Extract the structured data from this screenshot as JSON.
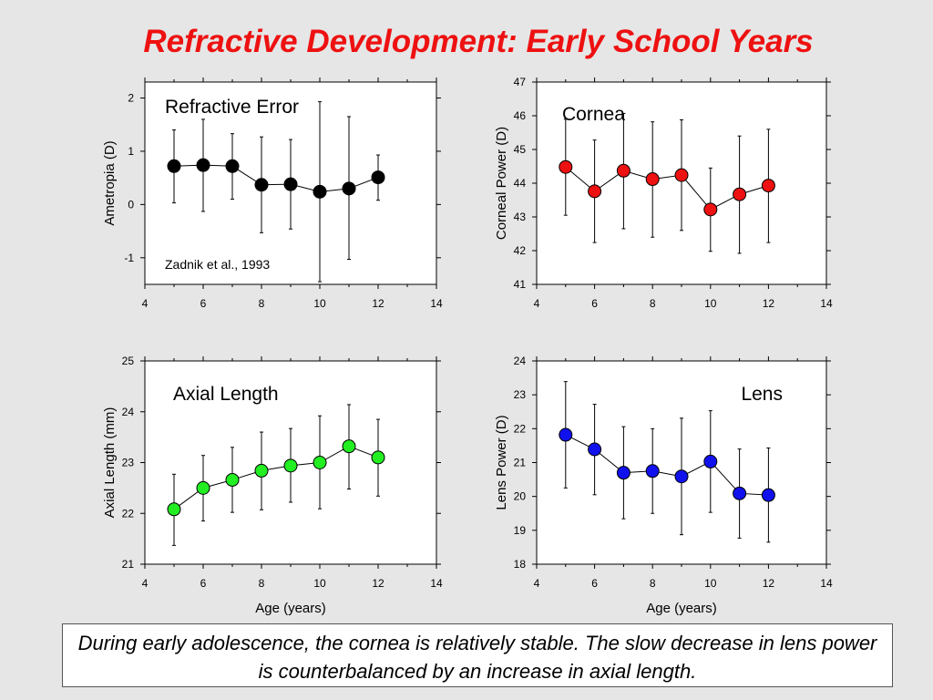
{
  "slide": {
    "title": "Refractive Development: Early School Years",
    "caption": "During early adolescence, the cornea is relatively stable. The slow decrease in lens power is counterbalanced by an increase in axial length."
  },
  "chart_data": [
    {
      "type": "scatter",
      "title": "Refractive Error",
      "annotation": "Zadnik et al., 1993",
      "xlabel": "",
      "ylabel": "Ametropia (D)",
      "xlim": [
        4,
        14
      ],
      "ylim": [
        -1.5,
        2.3
      ],
      "xticks": [
        4,
        6,
        8,
        10,
        12,
        14
      ],
      "yticks": [
        -1,
        0,
        1,
        2
      ],
      "marker_color": "#000000",
      "x": [
        5,
        6,
        7,
        8,
        9,
        10,
        11,
        12
      ],
      "y": [
        0.72,
        0.74,
        0.72,
        0.37,
        0.38,
        0.24,
        0.3,
        0.51
      ],
      "err_low": [
        0.03,
        -0.13,
        0.1,
        -0.53,
        -0.46,
        -1.45,
        -1.03,
        0.08
      ],
      "err_high": [
        1.4,
        1.6,
        1.33,
        1.27,
        1.22,
        1.93,
        1.65,
        0.93
      ]
    },
    {
      "type": "scatter",
      "title": "Cornea",
      "xlabel": "",
      "ylabel": "Corneal Power (D)",
      "xlim": [
        4,
        14
      ],
      "ylim": [
        41,
        47
      ],
      "xticks": [
        4,
        6,
        8,
        10,
        12,
        14
      ],
      "yticks": [
        41,
        42,
        43,
        44,
        45,
        46,
        47
      ],
      "marker_color": "#ee1111",
      "x": [
        5,
        6,
        7,
        8,
        9,
        10,
        11,
        12
      ],
      "y": [
        44.48,
        43.76,
        44.37,
        44.12,
        44.24,
        43.22,
        43.67,
        43.93
      ],
      "err_low": [
        43.05,
        42.24,
        42.65,
        42.4,
        42.6,
        41.98,
        41.92,
        42.24
      ],
      "err_high": [
        45.9,
        45.28,
        46.07,
        45.82,
        45.88,
        44.45,
        45.4,
        45.6
      ]
    },
    {
      "type": "scatter",
      "title": "Axial Length",
      "xlabel": "Age (years)",
      "ylabel": "Axial Length (mm)",
      "xlim": [
        4,
        14
      ],
      "ylim": [
        21,
        25
      ],
      "xticks": [
        4,
        6,
        8,
        10,
        12,
        14
      ],
      "yticks": [
        21,
        22,
        23,
        24,
        25
      ],
      "marker_color": "#22ee22",
      "x": [
        5,
        6,
        7,
        8,
        9,
        10,
        11,
        12
      ],
      "y": [
        22.08,
        22.5,
        22.66,
        22.84,
        22.94,
        23.0,
        23.32,
        23.1
      ],
      "err_low": [
        21.37,
        21.85,
        22.02,
        22.07,
        22.22,
        22.09,
        22.48,
        22.34
      ],
      "err_high": [
        22.77,
        23.14,
        23.3,
        23.6,
        23.67,
        23.92,
        24.14,
        23.85
      ]
    },
    {
      "type": "scatter",
      "title": "Lens",
      "xlabel": "Age (years)",
      "ylabel": "Lens Power (D)",
      "xlim": [
        4,
        14
      ],
      "ylim": [
        18,
        24
      ],
      "xticks": [
        4,
        6,
        8,
        10,
        12,
        14
      ],
      "yticks": [
        18,
        19,
        20,
        21,
        22,
        23,
        24
      ],
      "marker_color": "#1111ee",
      "x": [
        5,
        6,
        7,
        8,
        9,
        10,
        11,
        12
      ],
      "y": [
        21.82,
        21.39,
        20.7,
        20.75,
        20.59,
        21.03,
        20.09,
        20.04
      ],
      "err_low": [
        20.25,
        20.05,
        19.34,
        19.5,
        18.87,
        19.53,
        18.77,
        18.65
      ],
      "err_high": [
        23.39,
        22.72,
        22.06,
        22.0,
        22.31,
        22.53,
        21.4,
        21.43
      ]
    }
  ]
}
